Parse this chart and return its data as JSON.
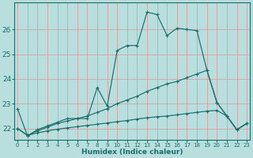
{
  "background_color": "#b8dede",
  "grid_color": "#d4a0a0",
  "line_color": "#1a6e6a",
  "xlabel": "Humidex (Indice chaleur)",
  "xlim": [
    -0.3,
    23.3
  ],
  "ylim": [
    21.55,
    27.1
  ],
  "yticks": [
    22,
    23,
    24,
    25,
    26
  ],
  "xtick_labels": [
    "0",
    "1",
    "2",
    "3",
    "4",
    "5",
    "6",
    "7",
    "8",
    "9",
    "10",
    "11",
    "12",
    "13",
    "14",
    "15",
    "16",
    "17",
    "18",
    "19",
    "20",
    "21",
    "22",
    "23"
  ],
  "xticks": [
    0,
    1,
    2,
    3,
    4,
    5,
    6,
    7,
    8,
    9,
    10,
    11,
    12,
    13,
    14,
    15,
    16,
    17,
    18,
    19,
    20,
    21,
    22,
    23
  ],
  "series": [
    {
      "x": [
        0,
        1,
        2,
        3,
        4,
        5,
        6,
        7,
        8,
        9,
        10,
        11,
        12,
        13,
        14,
        15,
        16,
        17,
        18,
        19,
        20,
        21,
        22,
        23
      ],
      "y": [
        22.8,
        21.7,
        21.95,
        22.1,
        22.25,
        22.4,
        22.4,
        22.4,
        23.65,
        22.9,
        25.15,
        25.35,
        25.35,
        26.7,
        26.6,
        25.75,
        26.05,
        26.0,
        25.95,
        24.35,
        23.05,
        22.5,
        21.95,
        22.2
      ]
    },
    {
      "x": [
        0,
        1,
        2,
        3,
        4,
        5,
        6,
        7,
        8,
        9,
        10,
        11,
        12,
        13,
        14,
        15,
        16,
        17,
        18,
        19,
        20,
        21,
        22,
        23
      ],
      "y": [
        22.0,
        21.72,
        21.9,
        22.05,
        22.2,
        22.3,
        22.4,
        22.5,
        22.65,
        22.8,
        23.0,
        23.15,
        23.3,
        23.5,
        23.65,
        23.8,
        23.9,
        24.05,
        24.2,
        24.35,
        23.05,
        22.5,
        21.95,
        22.2
      ]
    },
    {
      "x": [
        0,
        1,
        2,
        3,
        4,
        5,
        6,
        7,
        8,
        9,
        10,
        11,
        12,
        13,
        14,
        15,
        16,
        17,
        18,
        19,
        20,
        21,
        22,
        23
      ],
      "y": [
        22.0,
        21.72,
        21.82,
        21.9,
        21.97,
        22.02,
        22.07,
        22.12,
        22.17,
        22.22,
        22.27,
        22.32,
        22.38,
        22.43,
        22.47,
        22.5,
        22.55,
        22.6,
        22.65,
        22.7,
        22.73,
        22.5,
        21.95,
        22.2
      ]
    }
  ]
}
